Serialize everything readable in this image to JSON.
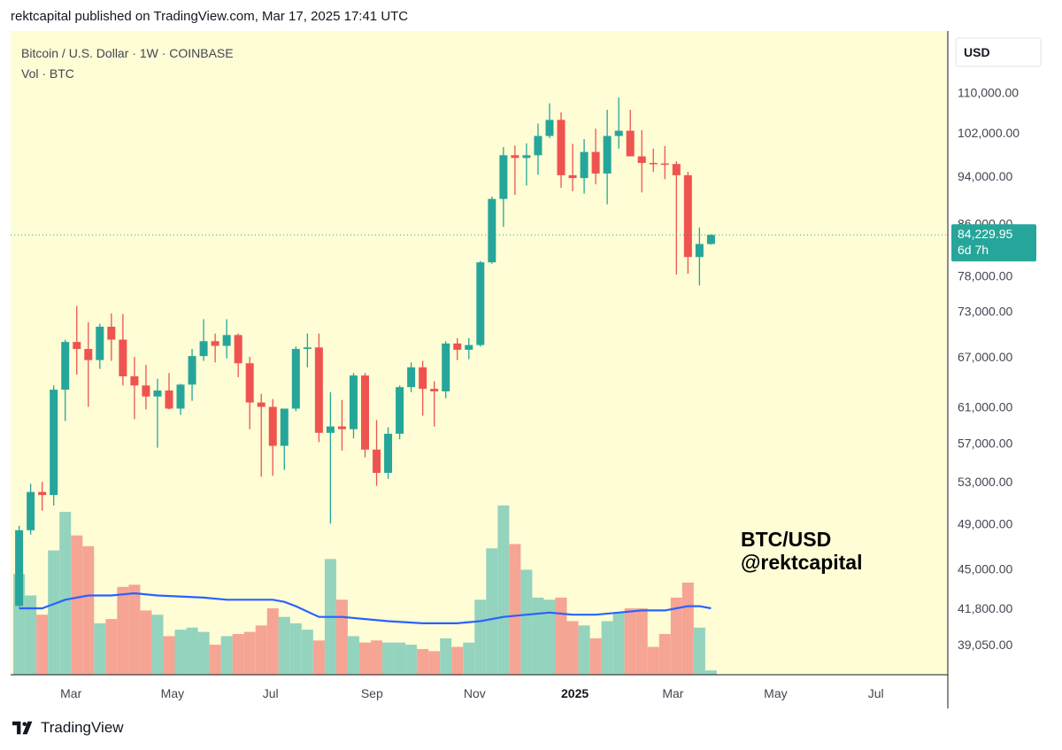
{
  "header": {
    "text": "rektcapital published on TradingView.com, Mar 17, 2025 17:41 UTC"
  },
  "brand": {
    "name": "TradingView",
    "logo_icon": "tradingview-logo-icon"
  },
  "colors": {
    "plot_bg": "#fefdd6",
    "up": "#26a69a",
    "down": "#ef5350",
    "vol_up": "#94d3bd",
    "vol_down": "#f6a494",
    "vol_ma": "#2962ff",
    "price_badge": "#26a69a"
  },
  "chart_data": {
    "type": "candlestick",
    "title": "Bitcoin / U.S. Dollar · 1W · COINBASE",
    "volume_label": "Vol · BTC",
    "currency": "USD",
    "price_scale": "log",
    "y_ticks": [
      110000,
      102000,
      94000,
      86000,
      78000,
      73000,
      67000,
      61000,
      57000,
      53000,
      49000,
      45000,
      41800,
      39050
    ],
    "y_tick_labels": [
      "110,000.00",
      "102,000.00",
      "94,000.00",
      "86,000.00",
      "78,000.00",
      "73,000.00",
      "67,000.00",
      "61,000.00",
      "57,000.00",
      "53,000.00",
      "49,000.00",
      "45,000.00",
      "41,800.00",
      "39,050.00"
    ],
    "x_ticks": [
      {
        "label": "Mar",
        "bar": 4.5,
        "bold": false
      },
      {
        "label": "May",
        "bar": 13.3,
        "bold": false
      },
      {
        "label": "Jul",
        "bar": 21.8,
        "bold": false
      },
      {
        "label": "Sep",
        "bar": 30.6,
        "bold": false
      },
      {
        "label": "Nov",
        "bar": 39.5,
        "bold": false
      },
      {
        "label": "2025",
        "bar": 48.2,
        "bold": true
      },
      {
        "label": "Mar",
        "bar": 56.7,
        "bold": false
      },
      {
        "label": "May",
        "bar": 65.6,
        "bold": false
      },
      {
        "label": "Jul",
        "bar": 74.3,
        "bold": false
      }
    ],
    "last_price": {
      "value": 84229.95,
      "label": "84,229.95",
      "countdown": "6d 7h"
    },
    "watermark": [
      "BTC/USD",
      "@rektcapital"
    ],
    "candles": [
      {
        "o": 42000,
        "h": 48800,
        "l": 41900,
        "c": 48400,
        "v": 47
      },
      {
        "o": 48400,
        "h": 52800,
        "l": 48000,
        "c": 52000,
        "v": 37
      },
      {
        "o": 52000,
        "h": 53000,
        "l": 50200,
        "c": 51700,
        "v": 28
      },
      {
        "o": 51700,
        "h": 63500,
        "l": 50700,
        "c": 63000,
        "v": 58
      },
      {
        "o": 63000,
        "h": 69200,
        "l": 59400,
        "c": 68900,
        "v": 76
      },
      {
        "o": 68900,
        "h": 73700,
        "l": 64800,
        "c": 68000,
        "v": 65
      },
      {
        "o": 68000,
        "h": 71500,
        "l": 61000,
        "c": 66600,
        "v": 60
      },
      {
        "o": 66600,
        "h": 71300,
        "l": 65500,
        "c": 70900,
        "v": 24
      },
      {
        "o": 70900,
        "h": 72700,
        "l": 66500,
        "c": 69200,
        "v": 26
      },
      {
        "o": 69200,
        "h": 72600,
        "l": 63500,
        "c": 64600,
        "v": 41
      },
      {
        "o": 64600,
        "h": 67000,
        "l": 59600,
        "c": 63500,
        "v": 42
      },
      {
        "o": 63500,
        "h": 66000,
        "l": 60700,
        "c": 62200,
        "v": 30
      },
      {
        "o": 62200,
        "h": 64300,
        "l": 56500,
        "c": 62900,
        "v": 28
      },
      {
        "o": 62900,
        "h": 65000,
        "l": 60700,
        "c": 60800,
        "v": 18
      },
      {
        "o": 60800,
        "h": 63700,
        "l": 60100,
        "c": 63600,
        "v": 21
      },
      {
        "o": 63600,
        "h": 68000,
        "l": 61700,
        "c": 67100,
        "v": 22
      },
      {
        "o": 67100,
        "h": 71900,
        "l": 66500,
        "c": 69000,
        "v": 20
      },
      {
        "o": 69000,
        "h": 70000,
        "l": 66300,
        "c": 68400,
        "v": 14
      },
      {
        "o": 68400,
        "h": 71900,
        "l": 66800,
        "c": 69800,
        "v": 18
      },
      {
        "o": 69800,
        "h": 70000,
        "l": 64500,
        "c": 66200,
        "v": 19
      },
      {
        "o": 66200,
        "h": 67000,
        "l": 58500,
        "c": 61500,
        "v": 20
      },
      {
        "o": 61500,
        "h": 62500,
        "l": 53500,
        "c": 61000,
        "v": 23
      },
      {
        "o": 61000,
        "h": 61900,
        "l": 53600,
        "c": 56700,
        "v": 31
      },
      {
        "o": 56700,
        "h": 60500,
        "l": 54200,
        "c": 60800,
        "v": 27
      },
      {
        "o": 60800,
        "h": 68300,
        "l": 60500,
        "c": 68000,
        "v": 24
      },
      {
        "o": 68000,
        "h": 70000,
        "l": 65700,
        "c": 68200,
        "v": 21
      },
      {
        "o": 68200,
        "h": 70000,
        "l": 57100,
        "c": 58100,
        "v": 16
      },
      {
        "o": 58100,
        "h": 62700,
        "l": 49000,
        "c": 58800,
        "v": 54
      },
      {
        "o": 58800,
        "h": 61800,
        "l": 56200,
        "c": 58500,
        "v": 35
      },
      {
        "o": 58500,
        "h": 65000,
        "l": 57500,
        "c": 64700,
        "v": 18
      },
      {
        "o": 64700,
        "h": 65000,
        "l": 55500,
        "c": 56300,
        "v": 15
      },
      {
        "o": 56300,
        "h": 59500,
        "l": 52600,
        "c": 53900,
        "v": 16
      },
      {
        "o": 53900,
        "h": 58700,
        "l": 53300,
        "c": 58000,
        "v": 15
      },
      {
        "o": 58000,
        "h": 63500,
        "l": 57400,
        "c": 63300,
        "v": 15
      },
      {
        "o": 63300,
        "h": 66300,
        "l": 62700,
        "c": 65700,
        "v": 14
      },
      {
        "o": 65700,
        "h": 66500,
        "l": 60000,
        "c": 63100,
        "v": 12
      },
      {
        "o": 63100,
        "h": 64000,
        "l": 58800,
        "c": 62800,
        "v": 11
      },
      {
        "o": 62800,
        "h": 69000,
        "l": 62000,
        "c": 68700,
        "v": 17
      },
      {
        "o": 68700,
        "h": 69400,
        "l": 66600,
        "c": 67900,
        "v": 13
      },
      {
        "o": 67900,
        "h": 69400,
        "l": 66700,
        "c": 68500,
        "v": 15
      },
      {
        "o": 68500,
        "h": 80200,
        "l": 68300,
        "c": 80000,
        "v": 35
      },
      {
        "o": 80000,
        "h": 90500,
        "l": 79800,
        "c": 90100,
        "v": 59
      },
      {
        "o": 90100,
        "h": 99300,
        "l": 85500,
        "c": 97800,
        "v": 79
      },
      {
        "o": 97800,
        "h": 99600,
        "l": 90800,
        "c": 97300,
        "v": 61
      },
      {
        "o": 97300,
        "h": 100000,
        "l": 92400,
        "c": 97800,
        "v": 49
      },
      {
        "o": 97800,
        "h": 103800,
        "l": 94300,
        "c": 101400,
        "v": 36
      },
      {
        "o": 101400,
        "h": 107800,
        "l": 101000,
        "c": 104500,
        "v": 35
      },
      {
        "o": 104500,
        "h": 106000,
        "l": 92000,
        "c": 94200,
        "v": 36
      },
      {
        "o": 94200,
        "h": 99900,
        "l": 91400,
        "c": 93700,
        "v": 25
      },
      {
        "o": 93700,
        "h": 100800,
        "l": 91000,
        "c": 98400,
        "v": 23
      },
      {
        "o": 98400,
        "h": 102800,
        "l": 92600,
        "c": 94500,
        "v": 17
      },
      {
        "o": 94500,
        "h": 106500,
        "l": 89200,
        "c": 101400,
        "v": 25
      },
      {
        "o": 101400,
        "h": 109000,
        "l": 99000,
        "c": 102400,
        "v": 29
      },
      {
        "o": 102400,
        "h": 106500,
        "l": 97600,
        "c": 97600,
        "v": 31
      },
      {
        "o": 97600,
        "h": 102500,
        "l": 91200,
        "c": 96400,
        "v": 31
      },
      {
        "o": 96400,
        "h": 99000,
        "l": 94800,
        "c": 96300,
        "v": 13
      },
      {
        "o": 96300,
        "h": 99500,
        "l": 93500,
        "c": 96200,
        "v": 19
      },
      {
        "o": 96200,
        "h": 96700,
        "l": 78200,
        "c": 94200,
        "v": 36
      },
      {
        "o": 94200,
        "h": 94800,
        "l": 78300,
        "c": 80800,
        "v": 43
      },
      {
        "o": 80800,
        "h": 85400,
        "l": 76600,
        "c": 82800,
        "v": 22
      },
      {
        "o": 82800,
        "h": 84300,
        "l": 82700,
        "c": 84230,
        "v": 2
      }
    ],
    "volume_ma": [
      {
        "bar": 0,
        "v": 31
      },
      {
        "bar": 2,
        "v": 31
      },
      {
        "bar": 4,
        "v": 35
      },
      {
        "bar": 6,
        "v": 37
      },
      {
        "bar": 8,
        "v": 37
      },
      {
        "bar": 10,
        "v": 38
      },
      {
        "bar": 12,
        "v": 37
      },
      {
        "bar": 16,
        "v": 36
      },
      {
        "bar": 18,
        "v": 35
      },
      {
        "bar": 20,
        "v": 35
      },
      {
        "bar": 22,
        "v": 35
      },
      {
        "bar": 23,
        "v": 34
      },
      {
        "bar": 24,
        "v": 32
      },
      {
        "bar": 26,
        "v": 27
      },
      {
        "bar": 28,
        "v": 27
      },
      {
        "bar": 30,
        "v": 26
      },
      {
        "bar": 32,
        "v": 25
      },
      {
        "bar": 35,
        "v": 24
      },
      {
        "bar": 38,
        "v": 24
      },
      {
        "bar": 40,
        "v": 25
      },
      {
        "bar": 42,
        "v": 27
      },
      {
        "bar": 44,
        "v": 28
      },
      {
        "bar": 46,
        "v": 29
      },
      {
        "bar": 48,
        "v": 28
      },
      {
        "bar": 50,
        "v": 28
      },
      {
        "bar": 52,
        "v": 29
      },
      {
        "bar": 54,
        "v": 30
      },
      {
        "bar": 56,
        "v": 30
      },
      {
        "bar": 58,
        "v": 32
      },
      {
        "bar": 59,
        "v": 32
      },
      {
        "bar": 60,
        "v": 31
      }
    ]
  }
}
